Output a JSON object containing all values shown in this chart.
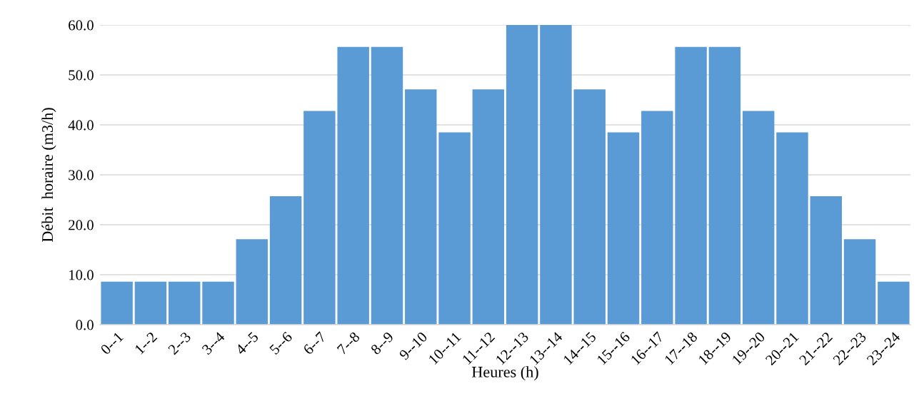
{
  "chart_data": {
    "type": "bar",
    "xlabel": "Heures (h)",
    "ylabel": "Débit  horaire (m3/h)",
    "categories": [
      "0--1",
      "1--2",
      "2--3",
      "3--4",
      "4--5",
      "5--6",
      "6--7",
      "7--8",
      "8--9",
      "9--10",
      "10--11",
      "11--12",
      "12--13",
      "13--14",
      "14--15",
      "15--16",
      "16--17",
      "17--18",
      "18--19",
      "19--20",
      "20--21",
      "21--22",
      "22--23",
      "23--24"
    ],
    "values": [
      8.6,
      8.6,
      8.6,
      8.6,
      17.1,
      25.7,
      42.8,
      55.6,
      55.6,
      47.1,
      38.5,
      47.1,
      60.0,
      60.0,
      47.1,
      38.5,
      42.8,
      55.6,
      55.6,
      42.8,
      38.5,
      25.7,
      17.1,
      8.6
    ],
    "color": "#5b9bd5",
    "ylim": [
      0,
      60
    ],
    "yticks": [
      {
        "value": 0,
        "label": "0.0"
      },
      {
        "value": 10,
        "label": "10.0"
      },
      {
        "value": 20,
        "label": "20.0"
      },
      {
        "value": 30,
        "label": "30.0"
      },
      {
        "value": 40,
        "label": "40.0"
      },
      {
        "value": 50,
        "label": "50.0"
      },
      {
        "value": 60,
        "label": "60.0"
      }
    ],
    "grid": "y",
    "legend": false
  }
}
